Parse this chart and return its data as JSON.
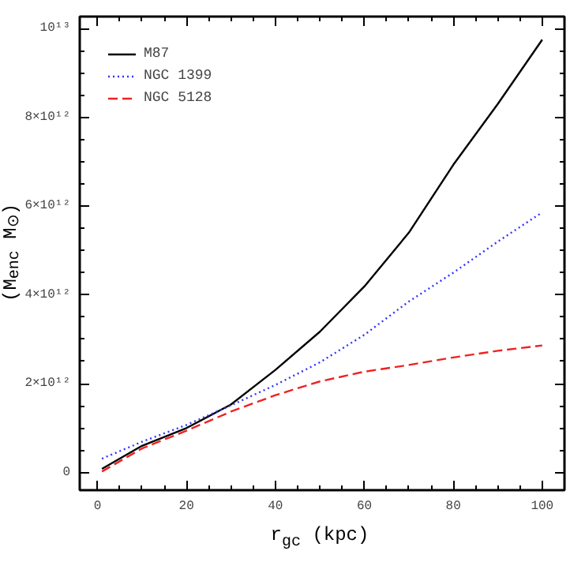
{
  "chart_data": {
    "type": "line",
    "xlabel": "r$_{gc}$ (kpc)",
    "ylabel": "(M$_{enc}$ M$_{⊙}$)",
    "xlim": [
      -4,
      105
    ],
    "ylim": [
      -400000000000.0,
      10270000000000.0
    ],
    "xticks": [
      0,
      20,
      40,
      60,
      80,
      100
    ],
    "yticks": [
      {
        "value": 0,
        "label": "0"
      },
      {
        "value": 2000000000000.0,
        "label": "2×10¹²"
      },
      {
        "value": 4000000000000.0,
        "label": "4×10¹²"
      },
      {
        "value": 6000000000000.0,
        "label": "6×10¹²"
      },
      {
        "value": 8000000000000.0,
        "label": "8×10¹²"
      },
      {
        "value": 10000000000000.0,
        "label": "10¹³"
      }
    ],
    "legend": "top left",
    "grid": false,
    "x": [
      1,
      10,
      20,
      30,
      40,
      50,
      60,
      70,
      80,
      90,
      100
    ],
    "series": [
      {
        "name": "M87",
        "color": "#000000",
        "line_style": "solid",
        "values": [
          80000000000.0,
          600000000000.0,
          1000000000000.0,
          1530000000000.0,
          2310000000000.0,
          3170000000000.0,
          4190000000000.0,
          5400000000000.0,
          6930000000000.0,
          8300000000000.0,
          9750000000000.0
        ]
      },
      {
        "name": "NGC 1399",
        "color": "#3333ff",
        "line_style": "dotted",
        "values": [
          310000000000.0,
          690000000000.0,
          1070000000000.0,
          1510000000000.0,
          1970000000000.0,
          2480000000000.0,
          3100000000000.0,
          3850000000000.0,
          4500000000000.0,
          5200000000000.0,
          5860000000000.0
        ]
      },
      {
        "name": "NGC 5128",
        "color": "#ee2222",
        "line_style": "dashed",
        "values": [
          20000000000.0,
          540000000000.0,
          940000000000.0,
          1370000000000.0,
          1740000000000.0,
          2050000000000.0,
          2270000000000.0,
          2420000000000.0,
          2590000000000.0,
          2740000000000.0,
          2860000000000.0
        ]
      }
    ]
  }
}
